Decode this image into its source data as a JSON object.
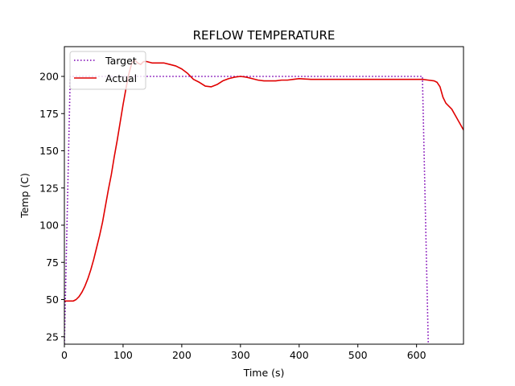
{
  "chart_data": {
    "type": "line",
    "title": "REFLOW TEMPERATURE",
    "xlabel": "Time (s)",
    "ylabel": "Temp (C)",
    "xlim": [
      0,
      680
    ],
    "ylim": [
      20,
      220
    ],
    "xticks": [
      0,
      100,
      200,
      300,
      400,
      500,
      600
    ],
    "yticks": [
      25,
      50,
      75,
      100,
      125,
      150,
      175,
      200
    ],
    "grid": false,
    "legend_position": "upper-left",
    "series": [
      {
        "name": "Target",
        "color": "#7b00b4",
        "style": "dotted",
        "x": [
          0,
          10,
          10,
          610,
          610,
          620,
          620
        ],
        "y": [
          20,
          200,
          200,
          200,
          200,
          20,
          20
        ]
      },
      {
        "name": "Actual",
        "color": "#e00000",
        "style": "solid",
        "x": [
          0,
          5,
          10,
          15,
          20,
          25,
          30,
          35,
          40,
          45,
          50,
          55,
          60,
          65,
          70,
          75,
          80,
          85,
          90,
          95,
          100,
          105,
          110,
          115,
          120,
          125,
          130,
          135,
          140,
          150,
          160,
          170,
          180,
          190,
          200,
          210,
          220,
          230,
          240,
          250,
          260,
          270,
          280,
          290,
          300,
          310,
          320,
          330,
          340,
          350,
          360,
          370,
          380,
          390,
          400,
          420,
          440,
          460,
          480,
          500,
          520,
          540,
          560,
          580,
          600,
          610,
          620,
          630,
          635,
          640,
          645,
          650,
          660,
          670,
          680
        ],
        "y": [
          49,
          49,
          49,
          49,
          50,
          52,
          55,
          59,
          64,
          70,
          77,
          85,
          93,
          102,
          113,
          124,
          134,
          146,
          157,
          169,
          181,
          192,
          202,
          209,
          211,
          209,
          208,
          210,
          210,
          209,
          209,
          209,
          208,
          207,
          205,
          202,
          198,
          196,
          193.5,
          193,
          194.5,
          197,
          198.5,
          199.5,
          200,
          199.5,
          198.5,
          197.5,
          197,
          197,
          197,
          197.5,
          197.5,
          198,
          198.5,
          198,
          198,
          198,
          198,
          198,
          198,
          198,
          198,
          198,
          198,
          198,
          197.5,
          197,
          196,
          193,
          186,
          182,
          178,
          171,
          164
        ]
      }
    ]
  }
}
